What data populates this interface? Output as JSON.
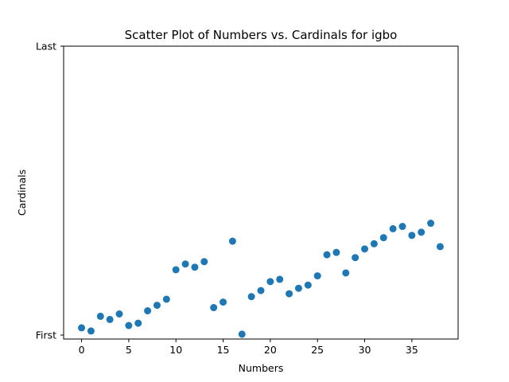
{
  "chart_data": {
    "type": "scatter",
    "title": "Scatter Plot of Numbers vs. Cardinals for igbo",
    "xlabel": "Numbers",
    "ylabel": "Cardinals",
    "xlim": [
      -1.9,
      39.9
    ],
    "ylim": [
      0,
      1
    ],
    "x_ticks": [
      0,
      5,
      10,
      15,
      20,
      25,
      30,
      35
    ],
    "y_ticks": [
      {
        "value": 0,
        "label": "First"
      },
      {
        "value": 1,
        "label": "Last"
      }
    ],
    "grid": false,
    "marker_color": "#1f77b4",
    "x": [
      0,
      1,
      2,
      3,
      4,
      5,
      6,
      7,
      8,
      9,
      10,
      11,
      12,
      13,
      14,
      15,
      16,
      17,
      18,
      19,
      20,
      21,
      22,
      23,
      24,
      25,
      26,
      27,
      28,
      29,
      30,
      31,
      32,
      33,
      34,
      35,
      36,
      37,
      38
    ],
    "y": [
      0.025,
      0.014,
      0.065,
      0.054,
      0.073,
      0.033,
      0.041,
      0.084,
      0.103,
      0.124,
      0.226,
      0.246,
      0.235,
      0.254,
      0.095,
      0.114,
      0.325,
      0.003,
      0.133,
      0.154,
      0.185,
      0.193,
      0.143,
      0.162,
      0.173,
      0.205,
      0.278,
      0.286,
      0.215,
      0.268,
      0.298,
      0.316,
      0.337,
      0.368,
      0.376,
      0.345,
      0.356,
      0.387,
      0.306
    ]
  }
}
